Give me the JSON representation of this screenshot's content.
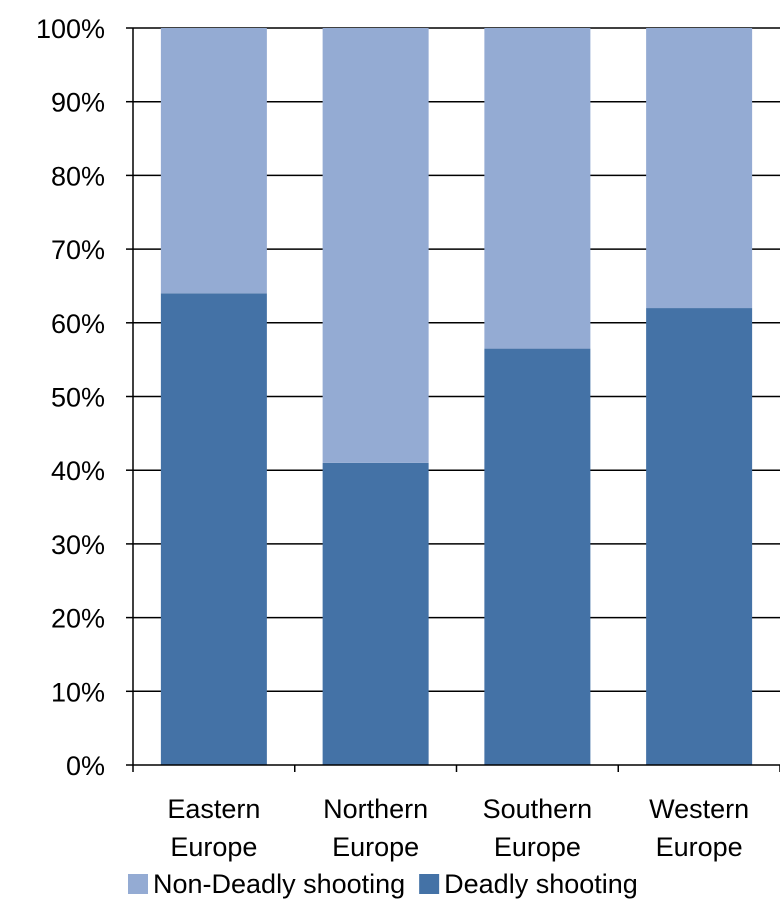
{
  "chart_data": {
    "type": "bar",
    "stacked": true,
    "percent_stacked": true,
    "categories": [
      [
        "Eastern",
        "Europe"
      ],
      [
        "Northern",
        "Europe"
      ],
      [
        "Southern",
        "Europe"
      ],
      [
        "Western",
        "Europe"
      ]
    ],
    "series": [
      {
        "name": "Deadly shooting",
        "color": "#4472a6",
        "values": [
          64,
          41,
          56.5,
          62
        ]
      },
      {
        "name": "Non-Deadly shooting",
        "color": "#94abd3",
        "values": [
          36,
          59,
          43.5,
          38
        ]
      }
    ],
    "y_ticks": [
      "0%",
      "10%",
      "20%",
      "30%",
      "40%",
      "50%",
      "60%",
      "70%",
      "80%",
      "90%",
      "100%"
    ],
    "ylim": [
      0,
      100
    ],
    "grid": true,
    "legend": {
      "position": "bottom",
      "entries": [
        "Non-Deadly shooting",
        "Deadly shooting"
      ]
    },
    "title": "",
    "xlabel": "",
    "ylabel": ""
  }
}
